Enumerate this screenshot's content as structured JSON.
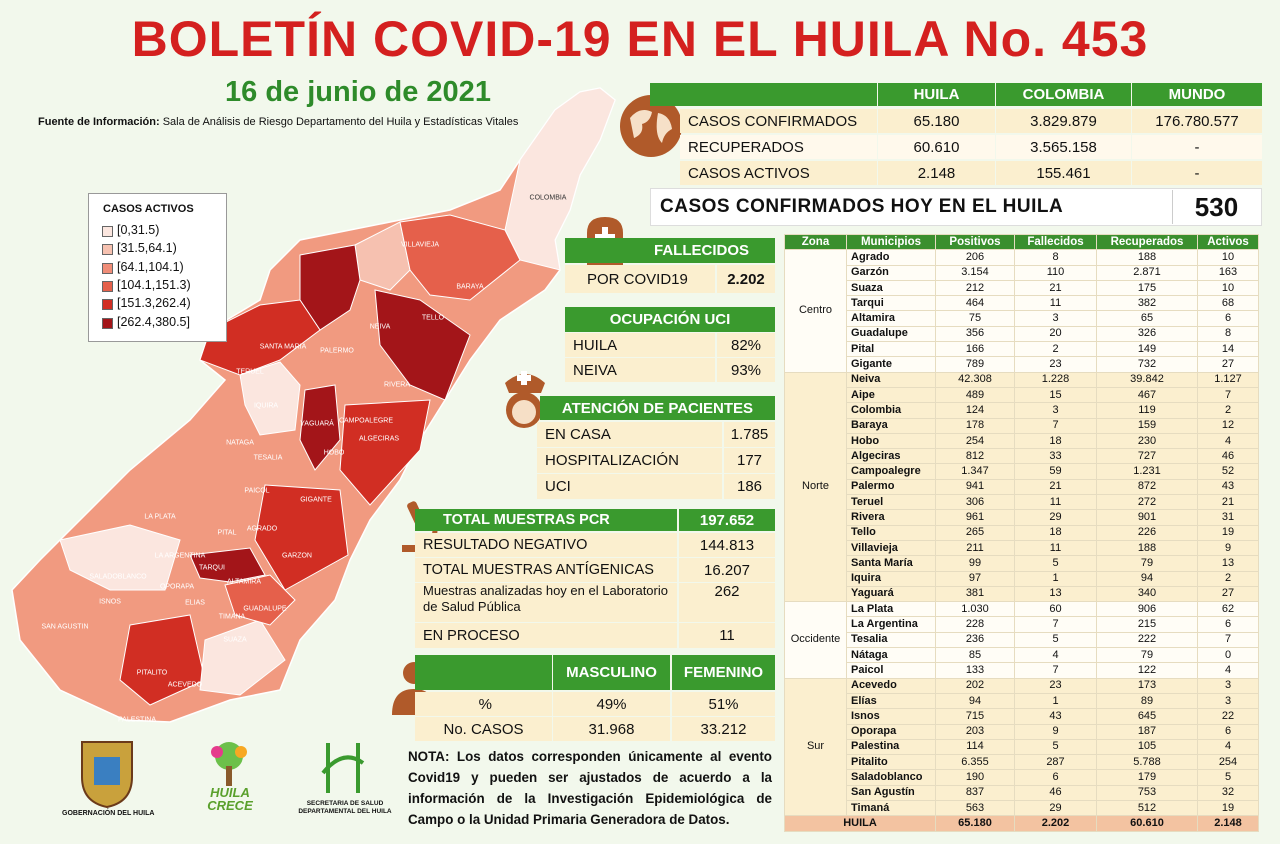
{
  "header": {
    "title": "BOLETÍN COVID-19 EN EL HUILA No. 453",
    "date": "16 de junio de 2021",
    "source_label": "Fuente de Información:",
    "source": "Sala de Análisis de Riesgo Departamento del Huila y Estadísticas Vitales"
  },
  "legend": {
    "title": "CASOS ACTIVOS",
    "items": [
      "[0,31.5)",
      "[31.5,64.1)",
      "[64.1,104.1)",
      "[104.1,151.3)",
      "[151.3,262.4)",
      "[262.4,380.5]"
    ]
  },
  "map_labels": [
    "COLOMBIA",
    "VILLAVIEJA",
    "BARAYA",
    "NEIVA",
    "TELLO",
    "SANTA MARIA",
    "PALERMO",
    "TERUEL",
    "RIVERA",
    "IQUIRA",
    "YAGUARÁ",
    "CAMPOALEGRE",
    "NATAGA",
    "TESALIA",
    "HOBO",
    "ALGECIRAS",
    "PAICOL",
    "GIGANTE",
    "LA PLATA",
    "PITAL",
    "AGRADO",
    "LA ARGENTINA",
    "TARQUI",
    "GARZON",
    "SALADOBLANCO",
    "OPORAPA",
    "ALTAMIRA",
    "ISNOS",
    "ELIAS",
    "TIMANA",
    "GUADALUPE",
    "SAN AGUSTIN",
    "SUAZA",
    "PITALITO",
    "ACEVEDO",
    "PALESTINA"
  ],
  "summary": {
    "headers": [
      "HUILA",
      "COLOMBIA",
      "MUNDO"
    ],
    "rows": [
      [
        "CASOS CONFIRMADOS",
        "65.180",
        "3.829.879",
        "176.780.577"
      ],
      [
        "RECUPERADOS",
        "60.610",
        "3.565.158",
        "-"
      ],
      [
        "CASOS ACTIVOS",
        "2.148",
        "155.461",
        "-"
      ]
    ]
  },
  "today": {
    "label": "CASOS CONFIRMADOS HOY EN EL HUILA",
    "value": "530"
  },
  "deaths": {
    "title": "FALLECIDOS",
    "label": "POR COVID19",
    "value": "2.202"
  },
  "icu": {
    "title": "OCUPACIÓN UCI",
    "rows": [
      [
        "HUILA",
        "82%"
      ],
      [
        "NEIVA",
        "93%"
      ]
    ]
  },
  "care": {
    "title": "ATENCIÓN DE PACIENTES",
    "rows": [
      [
        "EN CASA",
        "1.785"
      ],
      [
        "HOSPITALIZACIÓN",
        "177"
      ],
      [
        "UCI",
        "186"
      ]
    ]
  },
  "tests": {
    "rows": [
      [
        "TOTAL MUESTRAS PCR",
        "197.652"
      ],
      [
        "RESULTADO NEGATIVO",
        "144.813"
      ],
      [
        "TOTAL MUESTRAS ANTÍGENICAS",
        "16.207"
      ],
      [
        "Muestras analizadas hoy en el Laboratorio de Salud Pública",
        "262"
      ],
      [
        "EN PROCESO",
        "11"
      ]
    ]
  },
  "gender": {
    "headers": [
      "MASCULINO",
      "FEMENINO"
    ],
    "rows": [
      [
        "%",
        "49%",
        "51%"
      ],
      [
        "No. CASOS",
        "31.968",
        "33.212"
      ]
    ]
  },
  "note": {
    "label": "NOTA:",
    "text": "Los datos corresponden únicamente al evento Covid19 y pueden ser ajustados de acuerdo a la información de la Investigación Epidemiológica de Campo o la Unidad Primaria Generadora de Datos."
  },
  "logos": [
    "GOBERNACIÓN DEL HUILA",
    "HUILA CRECE",
    "SECRETARIA DE SALUD DEPARTAMENTAL DEL HUILA"
  ],
  "table": {
    "headers": [
      "Zona",
      "Municipios",
      "Positivos",
      "Fallecidos",
      "Recuperados",
      "Activos"
    ],
    "zones": [
      {
        "name": "Centro",
        "rows": [
          [
            "Agrado",
            "206",
            "8",
            "188",
            "10"
          ],
          [
            "Garzón",
            "3.154",
            "110",
            "2.871",
            "163"
          ],
          [
            "Suaza",
            "212",
            "21",
            "175",
            "10"
          ],
          [
            "Tarqui",
            "464",
            "11",
            "382",
            "68"
          ],
          [
            "Altamira",
            "75",
            "3",
            "65",
            "6"
          ],
          [
            "Guadalupe",
            "356",
            "20",
            "326",
            "8"
          ],
          [
            "Pital",
            "166",
            "2",
            "149",
            "14"
          ],
          [
            "Gigante",
            "789",
            "23",
            "732",
            "27"
          ]
        ]
      },
      {
        "name": "Norte",
        "rows": [
          [
            "Neiva",
            "42.308",
            "1.228",
            "39.842",
            "1.127"
          ],
          [
            "Aipe",
            "489",
            "15",
            "467",
            "7"
          ],
          [
            "Colombia",
            "124",
            "3",
            "119",
            "2"
          ],
          [
            "Baraya",
            "178",
            "7",
            "159",
            "12"
          ],
          [
            "Hobo",
            "254",
            "18",
            "230",
            "4"
          ],
          [
            "Algeciras",
            "812",
            "33",
            "727",
            "46"
          ],
          [
            "Campoalegre",
            "1.347",
            "59",
            "1.231",
            "52"
          ],
          [
            "Palermo",
            "941",
            "21",
            "872",
            "43"
          ],
          [
            "Teruel",
            "306",
            "11",
            "272",
            "21"
          ],
          [
            "Rivera",
            "961",
            "29",
            "901",
            "31"
          ],
          [
            "Tello",
            "265",
            "18",
            "226",
            "19"
          ],
          [
            "Villavieja",
            "211",
            "11",
            "188",
            "9"
          ],
          [
            "Santa María",
            "99",
            "5",
            "79",
            "13"
          ],
          [
            "Iquira",
            "97",
            "1",
            "94",
            "2"
          ],
          [
            "Yaguará",
            "381",
            "13",
            "340",
            "27"
          ]
        ]
      },
      {
        "name": "Occidente",
        "rows": [
          [
            "La Plata",
            "1.030",
            "60",
            "906",
            "62"
          ],
          [
            "La Argentina",
            "228",
            "7",
            "215",
            "6"
          ],
          [
            "Tesalia",
            "236",
            "5",
            "222",
            "7"
          ],
          [
            "Nátaga",
            "85",
            "4",
            "79",
            "0"
          ],
          [
            "Paicol",
            "133",
            "7",
            "122",
            "4"
          ]
        ]
      },
      {
        "name": "Sur",
        "rows": [
          [
            "Acevedo",
            "202",
            "23",
            "173",
            "3"
          ],
          [
            "Elías",
            "94",
            "1",
            "89",
            "3"
          ],
          [
            "Isnos",
            "715",
            "43",
            "645",
            "22"
          ],
          [
            "Oporapa",
            "203",
            "9",
            "187",
            "6"
          ],
          [
            "Palestina",
            "114",
            "5",
            "105",
            "4"
          ],
          [
            "Pitalito",
            "6.355",
            "287",
            "5.788",
            "254"
          ],
          [
            "Saladoblanco",
            "190",
            "6",
            "179",
            "5"
          ],
          [
            "San Agustín",
            "837",
            "46",
            "753",
            "32"
          ],
          [
            "Timaná",
            "563",
            "29",
            "512",
            "19"
          ]
        ]
      }
    ],
    "total": [
      "HUILA",
      "65.180",
      "2.202",
      "60.610",
      "2.148"
    ]
  }
}
